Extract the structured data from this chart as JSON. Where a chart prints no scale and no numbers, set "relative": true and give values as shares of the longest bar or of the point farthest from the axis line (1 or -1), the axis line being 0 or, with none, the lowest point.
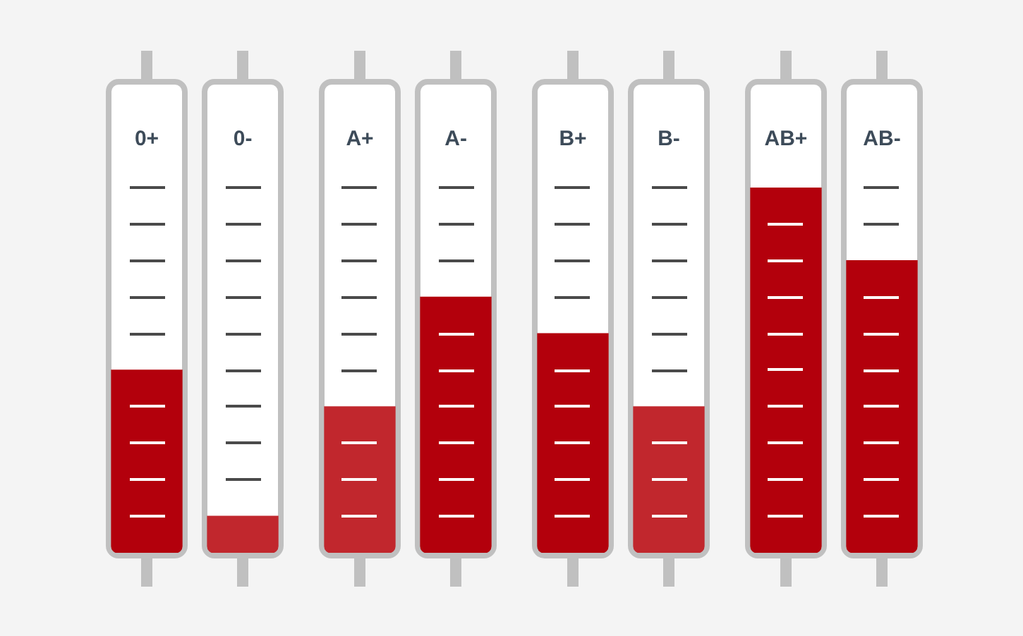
{
  "chart_data": {
    "type": "bar",
    "relative": true,
    "categories": [
      "0+",
      "0-",
      "A+",
      "A-",
      "B+",
      "B-",
      "AB+",
      "AB-"
    ],
    "values": [
      0.5,
      0.1,
      0.4,
      0.7,
      0.6,
      0.4,
      1,
      0.8
    ],
    "colors": [
      "#b3000c",
      "#c1272d",
      "#c1272d",
      "#b3000c",
      "#b3000c",
      "#c1272d",
      "#b3000c",
      "#b3000c"
    ]
  }
}
